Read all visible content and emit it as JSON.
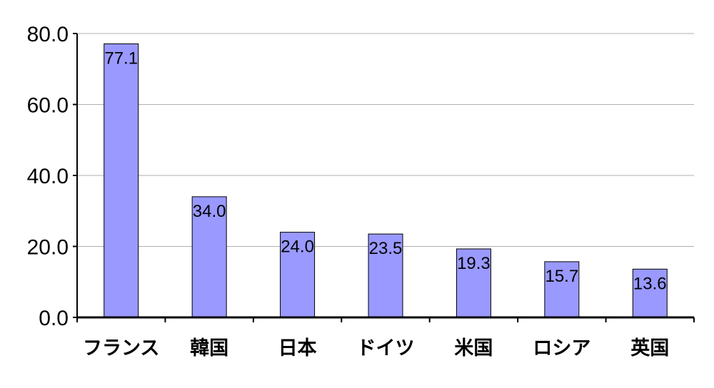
{
  "chart_data": {
    "type": "bar",
    "categories": [
      "フランス",
      "韓国",
      "日本",
      "ドイツ",
      "米国",
      "ロシア",
      "英国"
    ],
    "values": [
      77.1,
      34.0,
      24.0,
      23.5,
      19.3,
      15.7,
      13.6
    ],
    "data_labels": [
      "77.1",
      "34.0",
      "24.0",
      "23.5",
      "19.3",
      "15.7",
      "13.6"
    ],
    "y_ticks": [
      "0.0",
      "20.0",
      "40.0",
      "60.0",
      "80.0"
    ],
    "ylim": [
      0,
      80
    ],
    "grid": true,
    "legend": "none",
    "colors": {
      "bar_fill": "#9999ff",
      "bar_stroke": "#000000",
      "grid": "#b0b0b0",
      "axis": "#000000"
    }
  }
}
